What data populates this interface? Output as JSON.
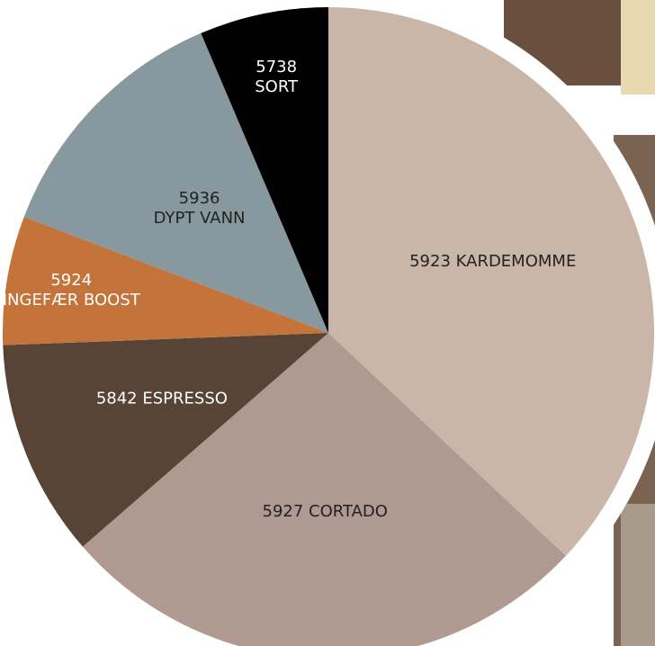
{
  "chart_data": {
    "type": "pie",
    "categories": [
      [
        "5923 KARDEMOMME"
      ],
      [
        "5927 CORTADO"
      ],
      [
        "5842 ESPRESSO"
      ],
      [
        "5924",
        "INGEFÆR BOOST"
      ],
      [
        "5936",
        "DYPT VANN"
      ],
      [
        "5738",
        "SORT"
      ]
    ],
    "values": [
      37,
      26.6,
      10.8,
      6.4,
      12.8,
      6.4
    ],
    "colors": [
      "#c9b6a8",
      "#b09990",
      "#574436",
      "#c4733a",
      "#87999f",
      "#000000"
    ],
    "start_angle": 0,
    "direction": "clockwise"
  }
}
